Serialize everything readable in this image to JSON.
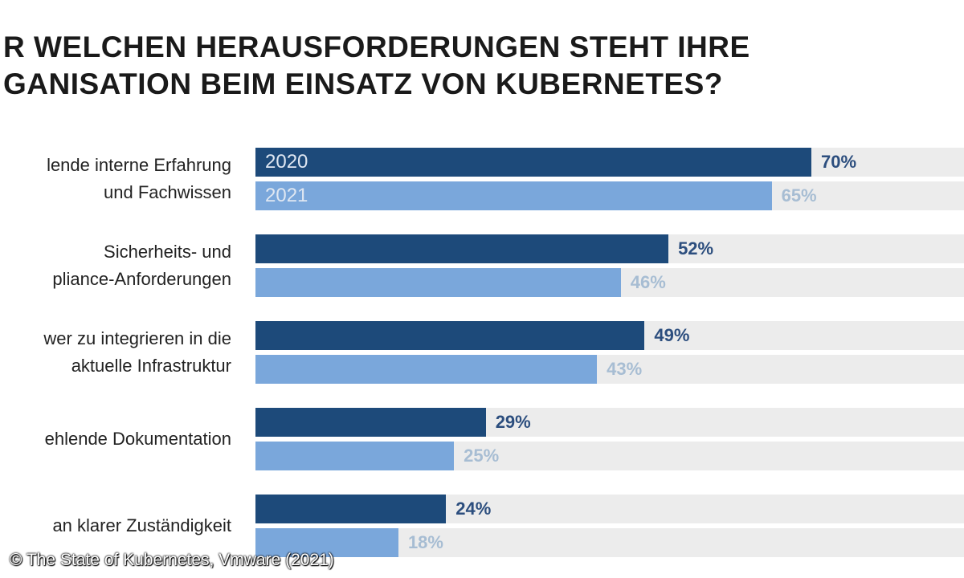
{
  "chart_data": {
    "type": "bar",
    "orientation": "horizontal",
    "title_lines": [
      "R WELCHEN HERAUSFORDERUNGEN STEHT IHRE",
      "GANISATION BEIM EINSATZ VON KUBERNETES?"
    ],
    "categories": [
      [
        "lende interne Erfahrung",
        "und Fachwissen"
      ],
      [
        "Sicherheits- und",
        "pliance-Anforderungen"
      ],
      [
        "wer zu integrieren in die",
        "aktuelle Infrastruktur"
      ],
      [
        "ehlende Dokumentation"
      ],
      [
        "an klarer Zuständigkeit"
      ]
    ],
    "series": [
      {
        "name": "2020",
        "values": [
          70,
          52,
          49,
          29,
          24
        ],
        "color": "#1d4a7a",
        "label_color": "#2c4e7e"
      },
      {
        "name": "2021",
        "values": [
          65,
          46,
          43,
          25,
          18
        ],
        "color": "#7aa7db",
        "label_color": "#a7bdd3"
      }
    ],
    "value_suffix": "%",
    "xlim": [
      0,
      100
    ],
    "track_color": "#ececec",
    "grid": false
  },
  "credit": "© The State of Kubernetes, Vmware (2021)"
}
